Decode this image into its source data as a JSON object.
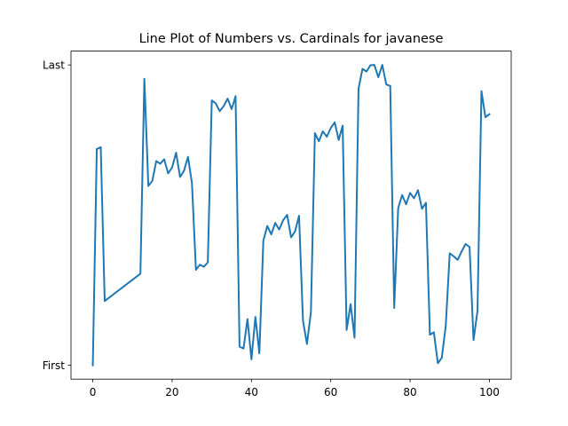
{
  "chart_data": {
    "type": "line",
    "title": "Line Plot of Numbers vs. Cardinals for javanese",
    "xlabel": "",
    "ylabel": "",
    "xlim": [
      -5.5,
      105.5
    ],
    "ylim": [
      -0.046,
      1.046
    ],
    "x_ticks": [
      0,
      20,
      40,
      60,
      80,
      100
    ],
    "y_ticks": [
      {
        "value": 0,
        "label": "First"
      },
      {
        "value": 1,
        "label": "Last"
      }
    ],
    "grid": false,
    "legend": "none",
    "series": [
      {
        "color": "#1f77b4",
        "x": [
          0,
          1,
          2,
          3,
          12,
          13,
          14,
          15,
          16,
          17,
          18,
          19,
          20,
          21,
          22,
          23,
          24,
          25,
          26,
          27,
          28,
          29,
          30,
          31,
          32,
          33,
          34,
          35,
          36,
          37,
          38,
          39,
          40,
          41,
          42,
          43,
          44,
          45,
          46,
          47,
          48,
          49,
          50,
          51,
          52,
          53,
          54,
          55,
          56,
          57,
          58,
          59,
          60,
          61,
          62,
          63,
          64,
          65,
          66,
          67,
          68,
          69,
          70,
          71,
          72,
          73,
          74,
          75,
          76,
          77,
          78,
          79,
          80,
          81,
          82,
          83,
          84,
          85,
          86,
          87,
          88,
          89,
          90,
          91,
          92,
          93,
          94,
          95,
          96,
          97,
          98,
          99,
          100
        ],
        "y": [
          0.0,
          0.72,
          0.726,
          0.214,
          0.305,
          0.954,
          0.597,
          0.614,
          0.68,
          0.671,
          0.686,
          0.639,
          0.659,
          0.708,
          0.627,
          0.648,
          0.694,
          0.606,
          0.318,
          0.335,
          0.328,
          0.343,
          0.882,
          0.872,
          0.846,
          0.863,
          0.888,
          0.853,
          0.896,
          0.062,
          0.056,
          0.154,
          0.02,
          0.161,
          0.04,
          0.415,
          0.464,
          0.436,
          0.474,
          0.452,
          0.483,
          0.501,
          0.426,
          0.446,
          0.498,
          0.148,
          0.071,
          0.178,
          0.773,
          0.746,
          0.779,
          0.761,
          0.79,
          0.809,
          0.75,
          0.798,
          0.118,
          0.204,
          0.092,
          0.921,
          0.987,
          0.978,
          0.999,
          1.0,
          0.959,
          1.0,
          0.935,
          0.93,
          0.191,
          0.523,
          0.567,
          0.536,
          0.574,
          0.556,
          0.583,
          0.521,
          0.541,
          0.102,
          0.11,
          0.007,
          0.025,
          0.132,
          0.373,
          0.363,
          0.351,
          0.379,
          0.404,
          0.394,
          0.084,
          0.181,
          0.913,
          0.826,
          0.836
        ]
      }
    ]
  }
}
